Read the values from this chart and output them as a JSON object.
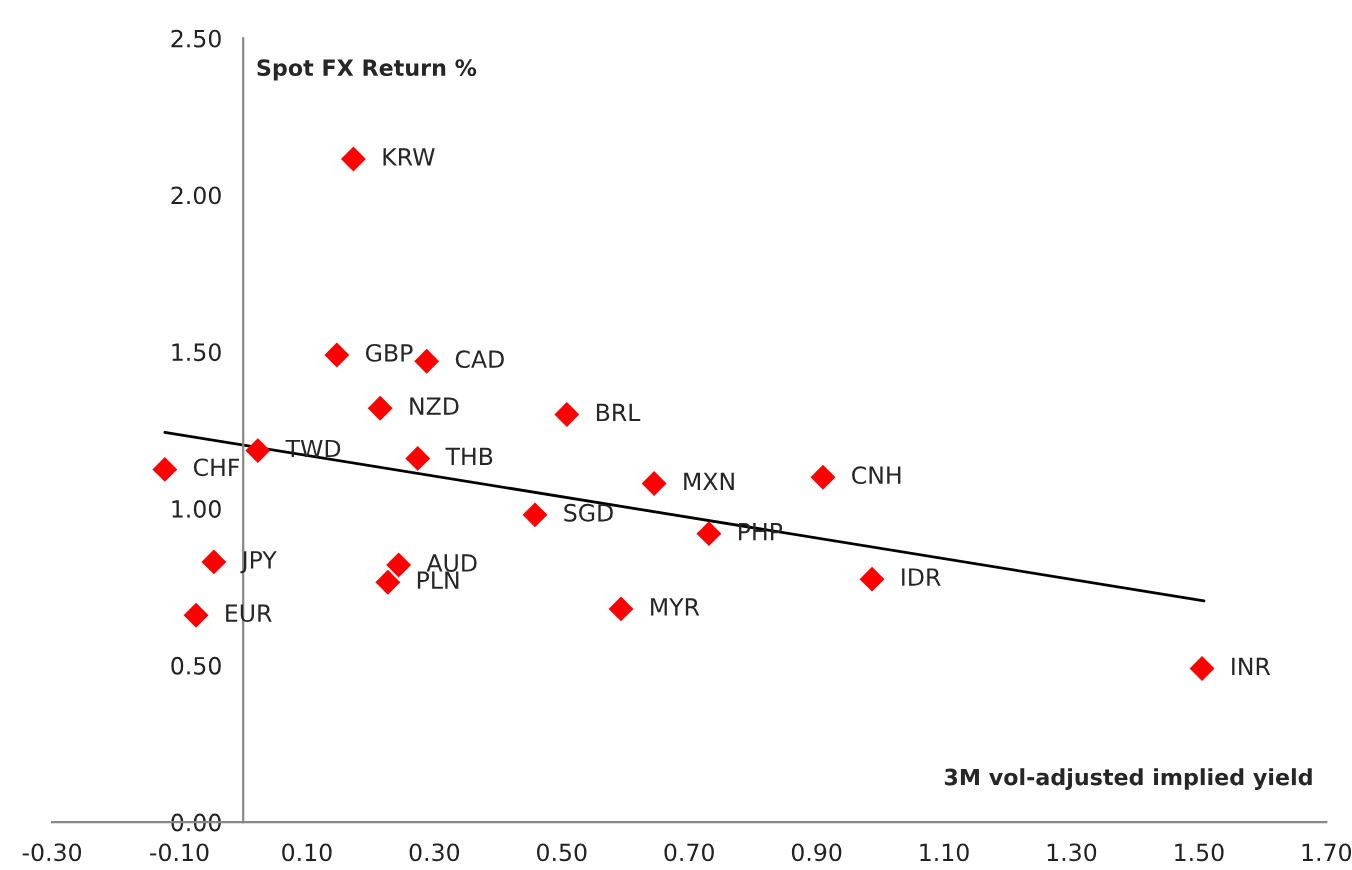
{
  "chart_data": {
    "type": "scatter",
    "xlabel": "3M vol-adjusted implied yield",
    "ylabel": "Spot FX Return %",
    "xlim": [
      -0.3,
      1.7
    ],
    "xticks": [
      {
        "value": -0.3,
        "label": "-0.30"
      },
      {
        "value": -0.1,
        "label": "-0.10"
      },
      {
        "value": 0.1,
        "label": "0.10"
      },
      {
        "value": 0.3,
        "label": "0.30"
      },
      {
        "value": 0.5,
        "label": "0.50"
      },
      {
        "value": 0.7,
        "label": "0.70"
      },
      {
        "value": 0.9,
        "label": "0.90"
      },
      {
        "value": 1.1,
        "label": "1.10"
      },
      {
        "value": 1.3,
        "label": "1.30"
      },
      {
        "value": 1.5,
        "label": "1.50"
      },
      {
        "value": 1.7,
        "label": "1.70"
      }
    ],
    "ylim": [
      0,
      2.5
    ],
    "yticks": [
      {
        "value": 0,
        "label": "0.00"
      },
      {
        "value": 0.5,
        "label": "0.50"
      },
      {
        "value": 1,
        "label": "1.00"
      },
      {
        "value": 1.5,
        "label": "1.50"
      },
      {
        "value": 2,
        "label": "2.00"
      },
      {
        "value": 2.5,
        "label": "2.50"
      }
    ],
    "grid": false,
    "marker": "diamond",
    "series": [
      {
        "color": "#ff0000",
        "x": [
          0.173,
          0.147,
          0.288,
          0.215,
          0.508,
          -0.123,
          0.023,
          0.274,
          0.645,
          0.91,
          0.458,
          0.731,
          0.987,
          0.593,
          1.505,
          -0.046,
          0.244,
          0.227,
          -0.074
        ],
        "values": [
          2.115,
          1.49,
          1.47,
          1.32,
          1.3,
          1.125,
          1.185,
          1.16,
          1.08,
          1.1,
          0.98,
          0.92,
          0.775,
          0.68,
          0.49,
          0.83,
          0.82,
          0.765,
          0.66
        ]
      },
      {
        "type": "line",
        "color": "#000000",
        "marker": "none",
        "x": [
          -0.123,
          1.508
        ],
        "values": [
          1.243,
          0.706
        ]
      }
    ],
    "annotations": [
      {
        "text": "KRW",
        "x": 0.173,
        "y": 2.115
      },
      {
        "text": "GBP",
        "x": 0.147,
        "y": 1.49
      },
      {
        "text": "CAD",
        "x": 0.288,
        "y": 1.47
      },
      {
        "text": "NZD",
        "x": 0.215,
        "y": 1.32
      },
      {
        "text": "BRL",
        "x": 0.508,
        "y": 1.3
      },
      {
        "text": "CHF",
        "x": -0.123,
        "y": 1.125
      },
      {
        "text": "TWD",
        "x": 0.023,
        "y": 1.185
      },
      {
        "text": "THB",
        "x": 0.274,
        "y": 1.16
      },
      {
        "text": "MXN",
        "x": 0.645,
        "y": 1.08
      },
      {
        "text": "CNH",
        "x": 0.91,
        "y": 1.1
      },
      {
        "text": "SGD",
        "x": 0.458,
        "y": 0.98
      },
      {
        "text": "PHP",
        "x": 0.731,
        "y": 0.92
      },
      {
        "text": "IDR",
        "x": 0.987,
        "y": 0.775
      },
      {
        "text": "MYR",
        "x": 0.593,
        "y": 0.68
      },
      {
        "text": "INR",
        "x": 1.505,
        "y": 0.49
      },
      {
        "text": "JPY",
        "x": -0.046,
        "y": 0.83
      },
      {
        "text": "AUD",
        "x": 0.244,
        "y": 0.82
      },
      {
        "text": "PLN",
        "x": 0.227,
        "y": 0.765
      },
      {
        "text": "EUR",
        "x": -0.074,
        "y": 0.66
      }
    ]
  }
}
